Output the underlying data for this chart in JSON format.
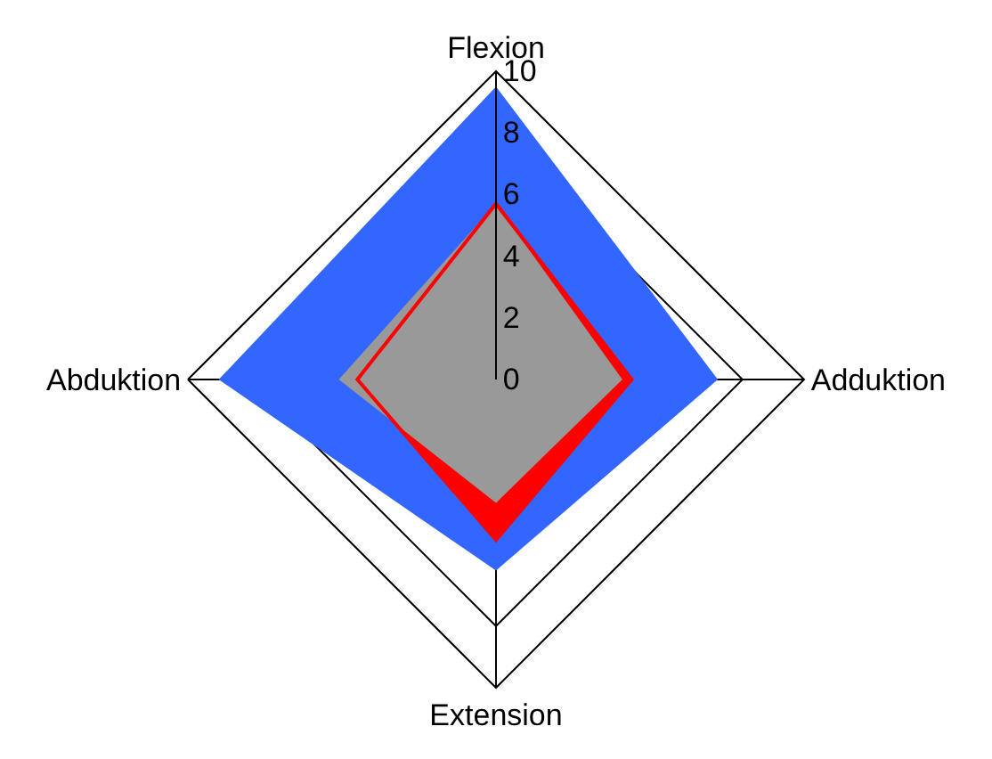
{
  "chart_data": {
    "type": "radar",
    "categories": [
      "Flexion",
      "Adduktion",
      "Extension",
      "Abduktion"
    ],
    "ylim": [
      0,
      10
    ],
    "yticks": [
      0,
      2,
      4,
      6,
      8,
      10
    ],
    "grid": true,
    "series": [
      {
        "color": "#3366ff",
        "values": [
          9.5,
          7.2,
          6.2,
          9.0
        ]
      },
      {
        "color": "#ff0000",
        "values": [
          5.7,
          4.4,
          5.2,
          4.5
        ]
      },
      {
        "color": "#999999",
        "values": [
          5.7,
          4.1,
          4.0,
          5.1
        ]
      }
    ]
  }
}
